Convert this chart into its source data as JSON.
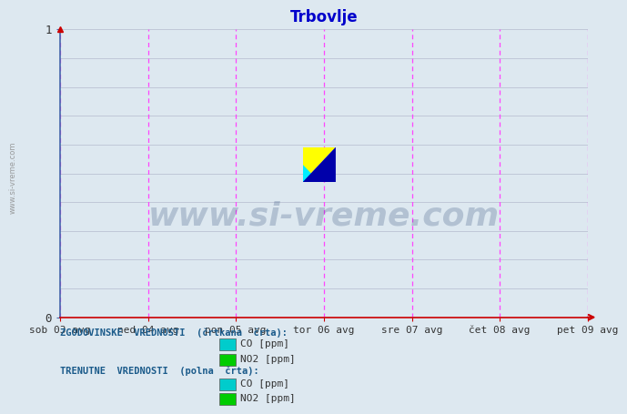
{
  "title": "Trbovlje",
  "title_color": "#0000cc",
  "title_fontsize": 12,
  "bg_color": "#dde8f0",
  "plot_bg_color": "#dde8f0",
  "xlim": [
    0,
    1
  ],
  "ylim": [
    0,
    1
  ],
  "yticks": [
    0,
    1
  ],
  "xtick_labels": [
    "sob 03 avg",
    "ned 04 avg",
    "pon 05 avg",
    "tor 06 avg",
    "sre 07 avg",
    "čet 08 avg",
    "pet 09 avg"
  ],
  "xtick_positions": [
    0.0,
    0.1667,
    0.3333,
    0.5,
    0.6667,
    0.8333,
    1.0
  ],
  "vline_color": "#ff44ff",
  "axis_color": "#cc0000",
  "grid_color": "#c0c8d8",
  "watermark_text": "www.si-vreme.com",
  "watermark_color": "#1a3a6a",
  "watermark_alpha": 0.22,
  "watermark_fontsize": 26,
  "left_label_color": "#1a5a8a",
  "ylabel_text": "www.si-vreme.com",
  "legend_title1": "ZGODOVINSKE  VREDNOSTI  (črtkana  črta):",
  "legend_title2": "TRENUTNE  VREDNOSTI  (polna  črta):",
  "legend_items_hist": [
    "CO [ppm]",
    "NO2 [ppm]"
  ],
  "legend_items_curr": [
    "CO [ppm]",
    "NO2 [ppm]"
  ],
  "legend_colors_hist": [
    "#00cccc",
    "#00cc00"
  ],
  "legend_colors_curr": [
    "#00cccc",
    "#00cc00"
  ],
  "logo_yellow": "#ffff00",
  "logo_cyan": "#00eeff",
  "logo_blue": "#0000aa"
}
